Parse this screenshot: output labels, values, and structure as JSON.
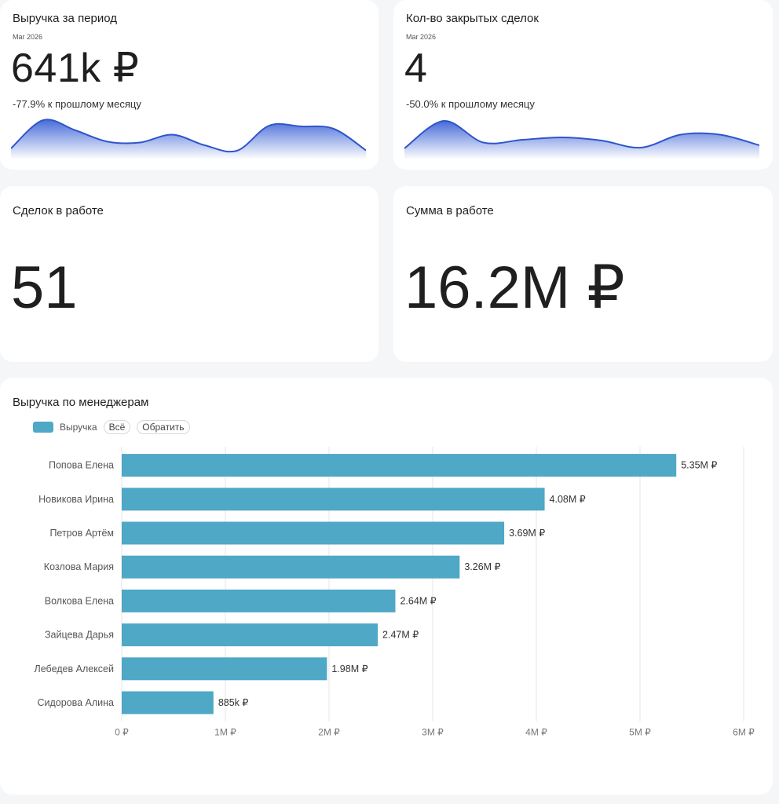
{
  "kpis": {
    "revenue": {
      "title": "Выручка за период",
      "date": "Mar 2026",
      "value": "641k ₽",
      "change": "-77.9% к прошлому месяцу",
      "trend": [
        0.2,
        0.92,
        0.66,
        0.37,
        0.35,
        0.55,
        0.28,
        0.14,
        0.78,
        0.76,
        0.7,
        0.15
      ]
    },
    "closed_deals": {
      "title": "Кол-во закрытых сделок",
      "date": "Mar 2026",
      "value": "4",
      "change": "-50.0% к прошлому месяцу",
      "trend": [
        0.2,
        0.9,
        0.35,
        0.42,
        0.48,
        0.4,
        0.22,
        0.55,
        0.55,
        0.28
      ]
    },
    "deals_in_work": {
      "title": "Сделок в работе",
      "value": "51"
    },
    "sum_in_work": {
      "title": "Сумма в работе",
      "value": "16.2M ₽"
    }
  },
  "managers_chart": {
    "title": "Выручка по менеджерам",
    "legend": {
      "series_label": "Выручка",
      "all_label": "Всё",
      "invert_label": "Обратить"
    },
    "color": "#4ea8c6"
  },
  "chart_data": {
    "type": "bar",
    "orientation": "horizontal",
    "title": "Выручка по менеджерам",
    "categories": [
      "Попова Елена",
      "Новикова Ирина",
      "Петров Артём",
      "Козлова Мария",
      "Волкова Елена",
      "Зайцева Дарья",
      "Лебедев Алексей",
      "Сидорова Алина"
    ],
    "series": [
      {
        "name": "Выручка",
        "values": [
          5350000,
          4080000,
          3690000,
          3260000,
          2640000,
          2470000,
          1980000,
          885000
        ],
        "labels": [
          "5.35M ₽",
          "4.08M ₽",
          "3.69M ₽",
          "3.26M ₽",
          "2.64M ₽",
          "2.47M ₽",
          "1.98M ₽",
          "885k ₽"
        ]
      }
    ],
    "xlim": [
      0,
      6000000
    ],
    "xticks": [
      0,
      1000000,
      2000000,
      3000000,
      4000000,
      5000000,
      6000000
    ],
    "xtick_labels": [
      "0 ₽",
      "1M ₽",
      "2M ₽",
      "3M ₽",
      "4M ₽",
      "5M ₽",
      "6M ₽"
    ],
    "grid": true,
    "legend_position": "top-left"
  }
}
